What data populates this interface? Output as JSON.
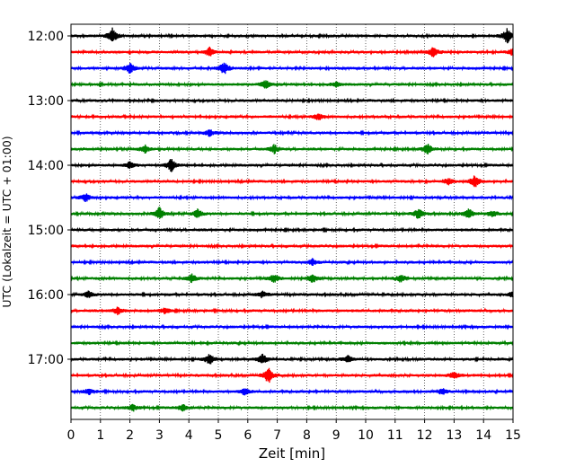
{
  "chart_data": {
    "type": "line",
    "title": "",
    "xlabel": "Zeit  [min]",
    "ylabel": "UTC (Lokalzeit = UTC + 01:00)",
    "xlim": [
      0,
      15
    ],
    "x_ticks": [
      "0",
      "1",
      "2",
      "3",
      "4",
      "5",
      "6",
      "7",
      "8",
      "9",
      "10",
      "11",
      "12",
      "13",
      "14",
      "15"
    ],
    "y_tick_labels": [
      "12:00",
      "13:00",
      "14:00",
      "15:00",
      "16:00",
      "17:00"
    ],
    "trace_interval_minutes": 15,
    "first_trace": "12:00",
    "grid": {
      "x": true,
      "y": false,
      "style": "dotted"
    },
    "trace_colors": [
      "#000000",
      "#ff0000",
      "#0000ff",
      "#008000"
    ],
    "traces": [
      {
        "start": "12:00",
        "color": "#000000",
        "events": [
          [
            1.4,
            7
          ],
          [
            14.8,
            7
          ]
        ]
      },
      {
        "start": "12:15",
        "color": "#ff0000",
        "events": [
          [
            4.7,
            4
          ],
          [
            12.3,
            5
          ],
          [
            15.0,
            4
          ]
        ]
      },
      {
        "start": "12:30",
        "color": "#0000ff",
        "events": [
          [
            2.0,
            5
          ],
          [
            5.2,
            6
          ]
        ]
      },
      {
        "start": "12:45",
        "color": "#008000",
        "events": [
          [
            6.6,
            4
          ],
          [
            9.0,
            2
          ]
        ]
      },
      {
        "start": "13:00",
        "color": "#000000",
        "events": []
      },
      {
        "start": "13:15",
        "color": "#ff0000",
        "events": [
          [
            8.4,
            3
          ]
        ]
      },
      {
        "start": "13:30",
        "color": "#0000ff",
        "events": [
          [
            4.7,
            3
          ]
        ]
      },
      {
        "start": "13:45",
        "color": "#008000",
        "events": [
          [
            2.5,
            4
          ],
          [
            6.9,
            4
          ],
          [
            12.1,
            5
          ]
        ]
      },
      {
        "start": "14:00",
        "color": "#000000",
        "events": [
          [
            2.0,
            3
          ],
          [
            3.4,
            6
          ]
        ]
      },
      {
        "start": "14:15",
        "color": "#ff0000",
        "events": [
          [
            13.7,
            6
          ],
          [
            12.8,
            3
          ]
        ]
      },
      {
        "start": "14:30",
        "color": "#0000ff",
        "events": [
          [
            0.5,
            4
          ]
        ]
      },
      {
        "start": "14:45",
        "color": "#008000",
        "events": [
          [
            3.0,
            6
          ],
          [
            4.3,
            4
          ],
          [
            11.8,
            5
          ],
          [
            13.5,
            5
          ],
          [
            14.3,
            3
          ]
        ]
      },
      {
        "start": "15:00",
        "color": "#000000",
        "events": []
      },
      {
        "start": "15:15",
        "color": "#ff0000",
        "events": []
      },
      {
        "start": "15:30",
        "color": "#0000ff",
        "events": [
          [
            8.2,
            3
          ]
        ]
      },
      {
        "start": "15:45",
        "color": "#008000",
        "events": [
          [
            4.1,
            4
          ],
          [
            6.9,
            4
          ],
          [
            8.2,
            4
          ],
          [
            11.2,
            4
          ]
        ]
      },
      {
        "start": "16:00",
        "color": "#000000",
        "events": [
          [
            0.6,
            3
          ],
          [
            6.5,
            3
          ],
          [
            15.0,
            3
          ]
        ]
      },
      {
        "start": "16:15",
        "color": "#ff0000",
        "events": [
          [
            1.6,
            4
          ],
          [
            3.2,
            3
          ]
        ]
      },
      {
        "start": "16:30",
        "color": "#0000ff",
        "events": []
      },
      {
        "start": "16:45",
        "color": "#008000",
        "events": []
      },
      {
        "start": "17:00",
        "color": "#000000",
        "events": [
          [
            4.7,
            5
          ],
          [
            6.5,
            5
          ],
          [
            9.4,
            3
          ]
        ]
      },
      {
        "start": "17:15",
        "color": "#ff0000",
        "events": [
          [
            6.7,
            8
          ],
          [
            13.0,
            4
          ]
        ]
      },
      {
        "start": "17:30",
        "color": "#0000ff",
        "events": [
          [
            0.6,
            3
          ],
          [
            5.9,
            3
          ],
          [
            12.6,
            3
          ]
        ]
      },
      {
        "start": "17:45",
        "color": "#008000",
        "events": [
          [
            2.1,
            3
          ],
          [
            3.8,
            3
          ]
        ]
      }
    ]
  }
}
